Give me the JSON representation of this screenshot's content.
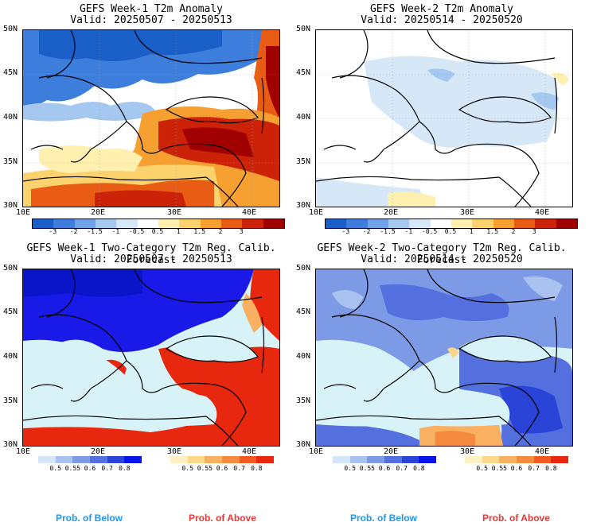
{
  "panels": [
    {
      "title": "GEFS Week-1 T2m Anomaly",
      "valid": "Valid: 20250507 - 20250513"
    },
    {
      "title": "GEFS Week-2 T2m Anomaly",
      "valid": "Valid: 20250514 - 20250520"
    },
    {
      "title": "GEFS Week-1 Two-Category T2m Reg. Calib. Forecast",
      "valid": "Valid: 20250507 - 20250513"
    },
    {
      "title": "GEFS Week-2 Two-Category T2m Reg. Calib. Forecast",
      "valid": "Valid: 20250514 - 20250520"
    }
  ],
  "lat_labels": [
    "50N",
    "45N",
    "40N",
    "35N",
    "30N"
  ],
  "lon_labels": [
    "10E",
    "20E",
    "30E",
    "40E"
  ],
  "anomaly_colorbar": {
    "ticks": [
      "-3",
      "-2",
      "-1.5",
      "-1",
      "-0.5",
      "0.5",
      "1",
      "1.5",
      "2",
      "3"
    ],
    "colors": [
      "#1a5ec8",
      "#3d7ddc",
      "#6ea3e8",
      "#a4c8f0",
      "#d6e8f7",
      "#ffffff",
      "#fff0b0",
      "#fcd26e",
      "#f5a030",
      "#e85c14",
      "#cc2208",
      "#a00000"
    ]
  },
  "prob_colorbar": {
    "below_ticks": [
      "0.5",
      "0.55",
      "0.6",
      "0.7",
      "0.8"
    ],
    "above_ticks": [
      "0.5",
      "0.55",
      "0.6",
      "0.7",
      "0.8"
    ],
    "below_colors": [
      "#d6e4f7",
      "#a9c2f0",
      "#7c9ae6",
      "#5370de",
      "#2a44d8",
      "#0a14e8"
    ],
    "above_colors": [
      "#fdf1c4",
      "#fcd68a",
      "#f9b060",
      "#f68a3e",
      "#f15a22",
      "#e8280e"
    ]
  },
  "legend": {
    "below": "Prob. of Below",
    "above": "Prob. of Above"
  },
  "colors": {
    "sea": "#d8f3f8",
    "below_text": "#2196f3",
    "above_text": "#e53935"
  }
}
